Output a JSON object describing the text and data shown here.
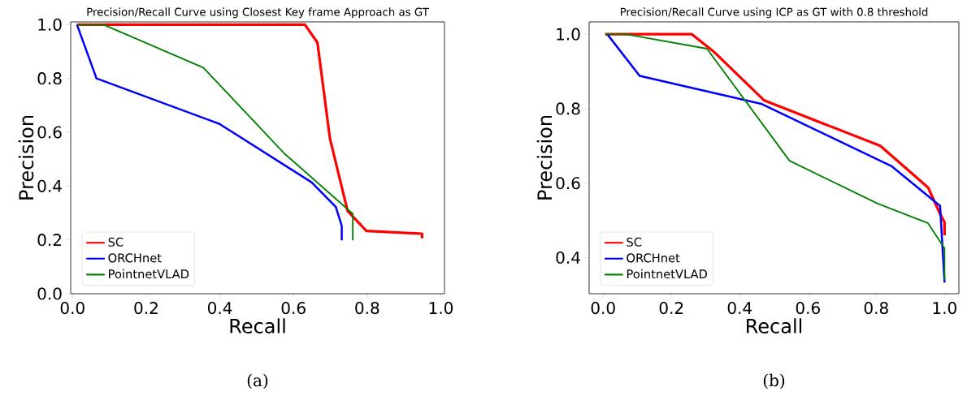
{
  "chart_data": [
    {
      "type": "line",
      "title": "Precision/Recall Curve using Closest Key frame Approach as GT",
      "xlabel": "Recall",
      "ylabel": "Precision",
      "annotations": [
        "(a)"
      ],
      "legend": "bottom left",
      "grid": false,
      "xlim": [
        -0.005,
        1.01
      ],
      "ylim": [
        0,
        1.01
      ],
      "xticks": [
        {
          "value": 0,
          "label": "0.0"
        },
        {
          "value": 0.2,
          "label": "0.2"
        },
        {
          "value": 0.4,
          "label": "0.4"
        },
        {
          "value": 0.6,
          "label": "0.6"
        },
        {
          "value": 0.8,
          "label": "0.8"
        },
        {
          "value": 1,
          "label": "1.0"
        }
      ],
      "yticks": [
        {
          "value": 0,
          "label": "0.0"
        },
        {
          "value": 0.2,
          "label": "0.2"
        },
        {
          "value": 0.4,
          "label": "0.4"
        },
        {
          "value": 0.6,
          "label": "0.6"
        },
        {
          "value": 0.8,
          "label": "0.8"
        },
        {
          "value": 1,
          "label": "1.0"
        }
      ],
      "series": [
        {
          "name": "SC",
          "color": "#ff0000",
          "x": [
            0.012,
            0.631,
            0.665,
            0.699,
            0.747,
            0.798,
            0.949,
            0.949
          ],
          "values": [
            1.0,
            1.0,
            0.933,
            0.576,
            0.307,
            0.233,
            0.223,
            0.206
          ]
        },
        {
          "name": "ORCHnet",
          "color": "#0000ff",
          "x": [
            0.012,
            0.065,
            0.399,
            0.649,
            0.715,
            0.731,
            0.731
          ],
          "values": [
            1.0,
            0.8,
            0.631,
            0.414,
            0.322,
            0.252,
            0.198
          ]
        },
        {
          "name": "PointnetVLAD",
          "color": "#008000",
          "x": [
            0.012,
            0.084,
            0.355,
            0.576,
            0.761,
            0.761
          ],
          "values": [
            1.0,
            1.0,
            0.84,
            0.52,
            0.297,
            0.198
          ]
        }
      ]
    },
    {
      "type": "line",
      "title": "Precision/Recall Curve using ICP as GT with 0.8 threshold",
      "xlabel": "Recall",
      "ylabel": "Precision",
      "annotations": [
        "(b)"
      ],
      "legend": "bottom left",
      "grid": false,
      "xlim": [
        -0.041,
        1.042
      ],
      "ylim": [
        0.303,
        1.033
      ],
      "xticks": [
        {
          "value": 0,
          "label": "0.0"
        },
        {
          "value": 0.2,
          "label": "0.2"
        },
        {
          "value": 0.4,
          "label": "0.4"
        },
        {
          "value": 0.6,
          "label": "0.6"
        },
        {
          "value": 0.8,
          "label": "0.8"
        },
        {
          "value": 1,
          "label": "1.0"
        }
      ],
      "yticks": [
        {
          "value": 0.4,
          "label": "0.4"
        },
        {
          "value": 0.6,
          "label": "0.6"
        },
        {
          "value": 0.8,
          "label": "0.8"
        },
        {
          "value": 1,
          "label": "1.0"
        }
      ],
      "series": [
        {
          "name": "SC",
          "color": "#ff0000",
          "x": [
            0.006,
            0.26,
            0.324,
            0.472,
            0.812,
            0.952,
            0.986,
            1.0,
            1.0
          ],
          "values": [
            1.0,
            1.0,
            0.953,
            0.822,
            0.7,
            0.588,
            0.519,
            0.495,
            0.46
          ]
        },
        {
          "name": "ORCHnet",
          "color": "#0000ff",
          "x": [
            0.012,
            0.107,
            0.463,
            0.844,
            0.987,
            1.0
          ],
          "values": [
            1.0,
            0.888,
            0.813,
            0.646,
            0.539,
            0.333
          ]
        },
        {
          "name": "PointnetVLAD",
          "color": "#008000",
          "x": [
            0.006,
            0.066,
            0.304,
            0.546,
            0.804,
            0.951,
            1.0,
            1.0
          ],
          "values": [
            1.0,
            1.0,
            0.961,
            0.66,
            0.545,
            0.493,
            0.425,
            0.34
          ]
        }
      ]
    }
  ]
}
